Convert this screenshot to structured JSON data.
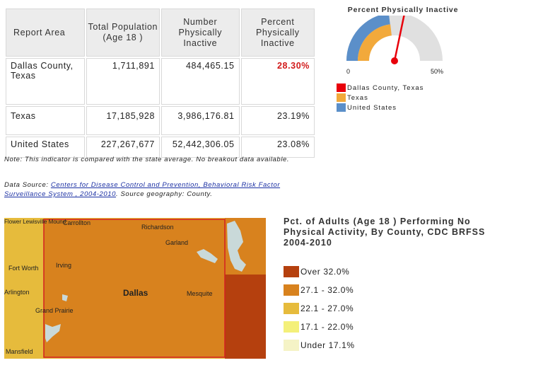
{
  "table": {
    "headers": [
      "Report Area",
      "Total Population (Age 18 )",
      "Number Physically Inactive",
      "Percent Physically Inactive"
    ],
    "rows": [
      {
        "area": "Dallas County, Texas",
        "population": "1,711,891",
        "number": "484,465.15",
        "percent": "28.30%"
      },
      {
        "area": "Texas",
        "population": "17,185,928",
        "number": "3,986,176.81",
        "percent": "23.19%"
      },
      {
        "area": "United States",
        "population": "227,267,677",
        "number": "52,442,306.05",
        "percent": "23.08%"
      }
    ]
  },
  "note": "Note: This indicator is compared with the state average. No breakout data available.",
  "source": {
    "prefix": "Data Source: ",
    "link": "Centers for Disease Control and Prevention, Behavioral Risk Factor Surveillance System , 2004-2010",
    "suffix": ". Source geography: County."
  },
  "gauge": {
    "title": "Percent Physically Inactive",
    "min_label": "0",
    "max_label": "50%",
    "max_value": 50,
    "values": {
      "dallas": 28.3,
      "texas": 23.19,
      "us": 23.08
    },
    "legend": [
      {
        "label": "Dallas County, Texas",
        "color": "#e8000b"
      },
      {
        "label": "Texas",
        "color": "#f2a93b"
      },
      {
        "label": "United States",
        "color": "#5b8fc9"
      }
    ]
  },
  "map": {
    "city_labels": [
      "Flower Lewisville Mound",
      "Carrollton",
      "Richardson",
      "Garland",
      "Fort Worth",
      "Irving",
      "Dallas",
      "Mesquite",
      "Arlington",
      "Grand Prairie",
      "Mansfield"
    ],
    "colors": {
      "over32": "#b5400e",
      "c27_32": "#d8821e",
      "c22_27": "#e6bb3c",
      "c17_22": "#f4f07a",
      "under17": "#f5f3c6",
      "water": "#c9d9d9",
      "highlight": "#d42020"
    }
  },
  "map_legend": {
    "title": "Pct. of Adults (Age 18 ) Performing No Physical Activity, By County, CDC BRFSS 2004-2010",
    "items": [
      {
        "label": "Over 32.0%",
        "color": "#b5400e"
      },
      {
        "label": "27.1 - 32.0%",
        "color": "#d8821e"
      },
      {
        "label": "22.1 - 27.0%",
        "color": "#e6bb3c"
      },
      {
        "label": "17.1 - 22.0%",
        "color": "#f4f07a"
      },
      {
        "label": "Under 17.1%",
        "color": "#f5f3c6"
      }
    ]
  }
}
